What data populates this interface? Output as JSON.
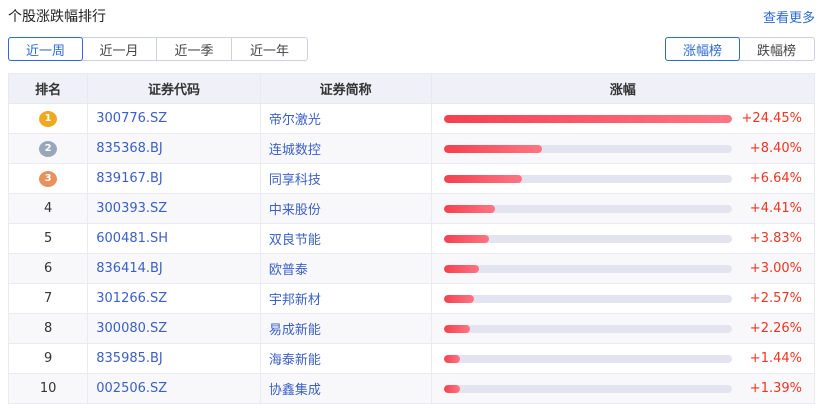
{
  "header": {
    "title": "个股涨跌幅排行",
    "more": "查看更多"
  },
  "periods": [
    {
      "label": "近一周",
      "active": true
    },
    {
      "label": "近一月"
    },
    {
      "label": "近一季"
    },
    {
      "label": "近一年"
    }
  ],
  "rank_tabs": [
    {
      "label": "涨幅榜",
      "active": true
    },
    {
      "label": "跌幅榜"
    }
  ],
  "columns": [
    "排名",
    "证券代码",
    "证券简称",
    "涨幅"
  ],
  "medal_colors": [
    "#f0a91f",
    "#98a8ba",
    "#e8915c"
  ],
  "rows": [
    {
      "rank": "1",
      "code": "300776.SZ",
      "name": "帝尔激光",
      "change": "+24.45%",
      "value": 24.45
    },
    {
      "rank": "2",
      "code": "835368.BJ",
      "name": "连城数控",
      "change": "+8.40%",
      "value": 8.4
    },
    {
      "rank": "3",
      "code": "839167.BJ",
      "name": "同享科技",
      "change": "+6.64%",
      "value": 6.64
    },
    {
      "rank": "4",
      "code": "300393.SZ",
      "name": "中来股份",
      "change": "+4.41%",
      "value": 4.41
    },
    {
      "rank": "5",
      "code": "600481.SH",
      "name": "双良节能",
      "change": "+3.83%",
      "value": 3.83
    },
    {
      "rank": "6",
      "code": "836414.BJ",
      "name": "欧普泰",
      "change": "+3.00%",
      "value": 3.0
    },
    {
      "rank": "7",
      "code": "301266.SZ",
      "name": "宇邦新材",
      "change": "+2.57%",
      "value": 2.57
    },
    {
      "rank": "8",
      "code": "300080.SZ",
      "name": "易成新能",
      "change": "+2.26%",
      "value": 2.26
    },
    {
      "rank": "9",
      "code": "835985.BJ",
      "name": "海泰新能",
      "change": "+1.44%",
      "value": 1.44
    },
    {
      "rank": "10",
      "code": "002506.SZ",
      "name": "协鑫集成",
      "change": "+1.39%",
      "value": 1.39
    }
  ]
}
